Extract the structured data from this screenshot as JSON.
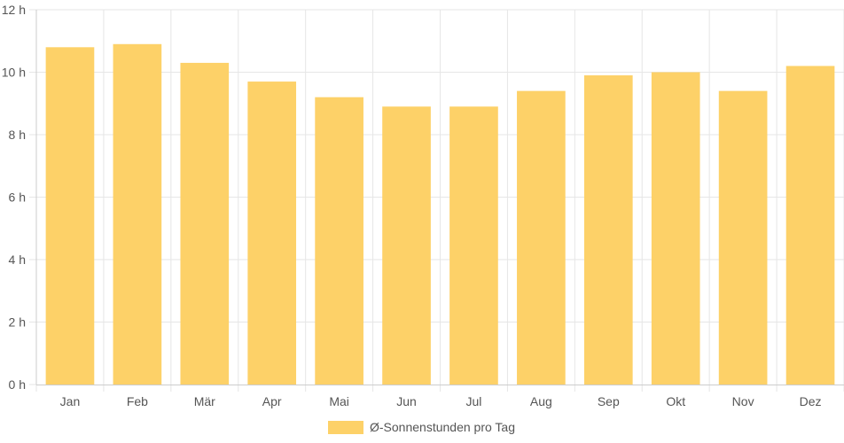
{
  "chart_data": {
    "type": "bar",
    "categories": [
      "Jan",
      "Feb",
      "Mär",
      "Apr",
      "Mai",
      "Jun",
      "Jul",
      "Aug",
      "Sep",
      "Okt",
      "Nov",
      "Dez"
    ],
    "series": [
      {
        "name": "Ø-Sonnenstunden pro Tag",
        "values": [
          10.8,
          10.9,
          10.3,
          9.7,
          9.2,
          8.9,
          8.9,
          9.4,
          9.9,
          10.0,
          9.4,
          10.2
        ],
        "color": "#fdd168"
      }
    ],
    "y_ticks": [
      "0 h",
      "2 h",
      "4 h",
      "6 h",
      "8 h",
      "10 h",
      "12 h"
    ],
    "ylim": [
      0,
      12
    ],
    "grid": true,
    "legend_position": "bottom"
  }
}
